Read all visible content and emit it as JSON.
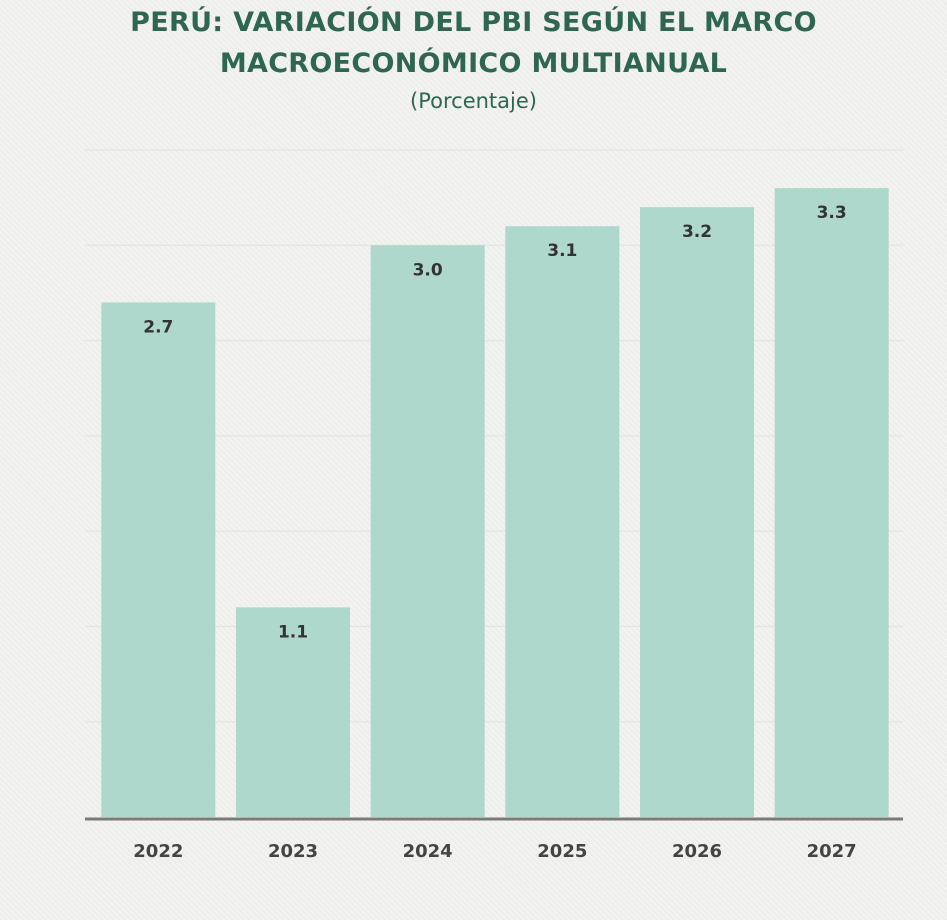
{
  "chart_data": {
    "type": "bar",
    "title_lines": [
      "PERÚ: VARIACIÓN DEL PBI SEGÚN EL MARCO",
      "MACROECONÓMICO MULTIANUAL"
    ],
    "subtitle": "(Porcentaje)",
    "categories": [
      "2022",
      "2023",
      "2024",
      "2025",
      "2026",
      "2027"
    ],
    "values": [
      2.7,
      1.1,
      3.0,
      3.1,
      3.2,
      3.3
    ],
    "data_labels": [
      "2.7",
      "1.1",
      "3.0",
      "3.1",
      "3.2",
      "3.3"
    ],
    "xlabel": "",
    "ylabel": "",
    "ylim": [
      0,
      3.5
    ],
    "grid": true,
    "legend": "none",
    "colors": {
      "bar": "#add8cb",
      "title": "#2e6652"
    }
  }
}
